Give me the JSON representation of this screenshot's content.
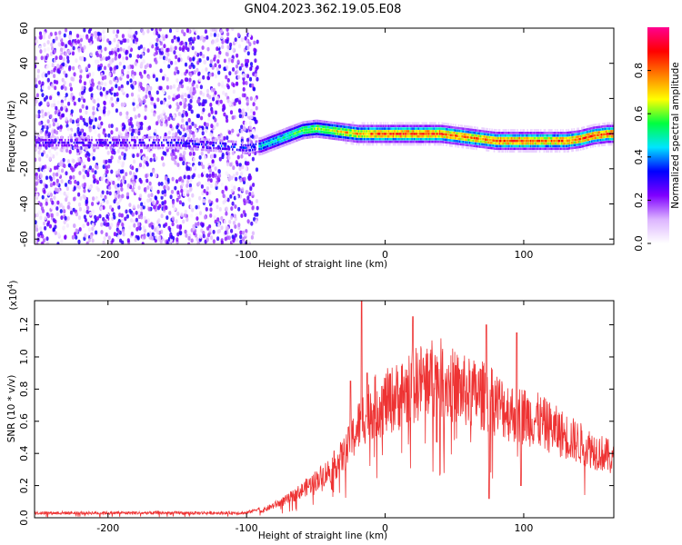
{
  "title": "GN04.2023.362.19.05.E08",
  "chart_data": [
    {
      "type": "heatmap",
      "xlabel": "Height of straight line (km)",
      "ylabel": "Frequency (Hz)",
      "xlim": [
        -253,
        165
      ],
      "ylim": [
        -63,
        60
      ],
      "xticks": [
        -200,
        -100,
        0,
        100
      ],
      "yticks": [
        -60,
        -40,
        -20,
        0,
        20,
        40,
        60
      ],
      "colorbar": {
        "label": "Normalized spectral amplitude",
        "range": [
          0,
          1
        ],
        "ticks": [
          "0.0",
          "0.2",
          "0.4",
          "0.6",
          "0.8"
        ],
        "colormap": [
          "#ffffff",
          "#dcb4ff",
          "#7f00ff",
          "#0000ff",
          "#00e5ff",
          "#00ff40",
          "#ffff00",
          "#ff8000",
          "#ff0000",
          "#ff0090"
        ]
      },
      "noise_region_x": [
        -253,
        -92
      ],
      "ridge": {
        "x": [
          -253,
          -200,
          -150,
          -100,
          -90,
          -80,
          -70,
          -60,
          -50,
          -40,
          -30,
          -20,
          -10,
          0,
          10,
          20,
          30,
          40,
          50,
          60,
          70,
          80,
          90,
          100,
          110,
          120,
          130,
          140,
          150,
          160,
          165
        ],
        "y": [
          -5,
          -5,
          -5,
          -8,
          -7,
          -4,
          -1,
          2,
          3,
          2,
          1,
          0,
          0,
          0,
          0,
          0,
          0,
          0,
          -1,
          -2,
          -3,
          -4,
          -4,
          -4,
          -4,
          -4,
          -4,
          -3,
          -1,
          0,
          0
        ],
        "amplitude": [
          0.35,
          0.35,
          0.4,
          0.45,
          0.5,
          0.55,
          0.6,
          0.65,
          0.7,
          0.75,
          0.8,
          0.85,
          0.9,
          0.92,
          0.95,
          0.95,
          0.95,
          0.95,
          0.9,
          0.88,
          0.9,
          0.92,
          0.95,
          0.95,
          0.92,
          0.9,
          0.9,
          0.93,
          0.95,
          0.95,
          0.95
        ]
      }
    },
    {
      "type": "line",
      "xlabel": "Height of straight line (km)",
      "ylabel": "SNR (10 * v/v)",
      "yscale_label": "(x10",
      "yscale_exp": "4",
      "yscale_close": ")",
      "xlim": [
        -253,
        165
      ],
      "ylim": [
        0,
        1.35
      ],
      "xticks": [
        -200,
        -100,
        0,
        100
      ],
      "yticks": [
        0.0,
        0.2,
        0.4,
        0.6,
        0.8,
        1.0,
        1.2
      ],
      "color": "#ee3333",
      "envelope": {
        "x": [
          -253,
          -200,
          -150,
          -100,
          -90,
          -80,
          -70,
          -60,
          -50,
          -40,
          -30,
          -25,
          -20,
          -15,
          -10,
          0,
          10,
          20,
          30,
          40,
          50,
          60,
          70,
          80,
          90,
          100,
          110,
          120,
          130,
          140,
          150,
          160,
          165
        ],
        "y": [
          0.02,
          0.02,
          0.02,
          0.02,
          0.05,
          0.1,
          0.15,
          0.22,
          0.3,
          0.38,
          0.5,
          0.6,
          0.72,
          0.82,
          0.88,
          0.92,
          0.98,
          1.05,
          1.12,
          1.12,
          1.05,
          1.0,
          0.98,
          0.92,
          0.85,
          0.82,
          0.78,
          0.72,
          0.66,
          0.6,
          0.55,
          0.5,
          0.45
        ]
      },
      "spikes": [
        {
          "x": -25,
          "y": 0.85
        },
        {
          "x": -17,
          "y": 1.35
        },
        {
          "x": -13,
          "y": 0.9
        },
        {
          "x": 20,
          "y": 1.25
        },
        {
          "x": 73,
          "y": 1.2
        },
        {
          "x": 75,
          "y": 0.12
        },
        {
          "x": 95,
          "y": 1.15
        },
        {
          "x": 98,
          "y": 0.2
        }
      ]
    }
  ]
}
